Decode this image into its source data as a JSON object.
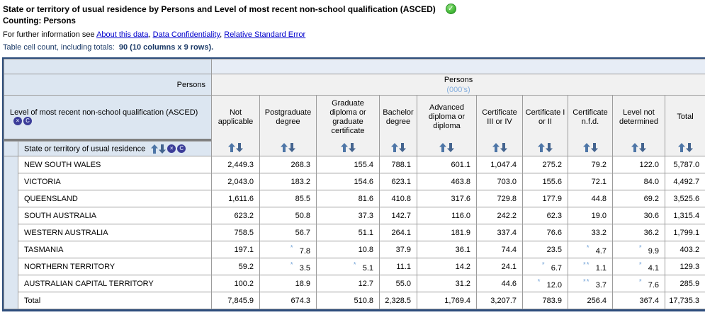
{
  "header": {
    "title": "State or territory of usual residence by Persons and Level of most recent non-school qualification (ASCED)",
    "counting": "Counting: Persons",
    "info_prefix": "For further information see ",
    "link_separator": ", ",
    "links": [
      "About this data",
      "Data Confidentiality",
      "Relative Standard Error"
    ],
    "cell_count_label": "Table cell count, including totals:",
    "cell_count_value": "90 (10 columns x 9 rows)."
  },
  "icons": {
    "status_check": "✓",
    "hide": "×",
    "rotate": "C"
  },
  "colors": {
    "header_blue": "#dce6f1",
    "column_header_gray": "#f1f1f1",
    "outer_border_navy": "#2d4d7c",
    "accent_navy": "#1b3a67",
    "link_blue": "#0000cc",
    "sort_arrow_blue": "#4e76a7",
    "flag_blue": "#76a5d8",
    "status_green": "#3faf3f"
  },
  "table": {
    "wafer_label": "Persons",
    "measure_label": "Persons",
    "measure_unit": "(000's)",
    "column_dimension_label": "Level of most recent non-school qualification (ASCED)",
    "row_dimension_label": "State or territory of usual residence",
    "columns": [
      "Not applicable",
      "Postgraduate degree",
      "Graduate diploma or graduate certificate",
      "Bachelor degree",
      "Advanced diploma or diploma",
      "Certificate III or IV",
      "Certificate I or II",
      "Certificate n.f.d.",
      "Level not determined",
      "Total"
    ],
    "rows": [
      {
        "label": "NEW SOUTH WALES",
        "values": [
          "2,449.3",
          "268.3",
          "155.4",
          "788.1",
          "601.1",
          "1,047.4",
          "275.2",
          "79.2",
          "122.0",
          "5,787.0"
        ],
        "flags": [
          "",
          "",
          "",
          "",
          "",
          "",
          "",
          "",
          "",
          ""
        ]
      },
      {
        "label": "VICTORIA",
        "values": [
          "2,043.0",
          "183.2",
          "154.6",
          "623.1",
          "463.8",
          "703.0",
          "155.6",
          "72.1",
          "84.0",
          "4,492.7"
        ],
        "flags": [
          "",
          "",
          "",
          "",
          "",
          "",
          "",
          "",
          "",
          ""
        ]
      },
      {
        "label": "QUEENSLAND",
        "values": [
          "1,611.6",
          "85.5",
          "81.6",
          "410.8",
          "317.6",
          "729.8",
          "177.9",
          "44.8",
          "69.2",
          "3,525.6"
        ],
        "flags": [
          "",
          "",
          "",
          "",
          "",
          "",
          "",
          "",
          "",
          ""
        ]
      },
      {
        "label": "SOUTH AUSTRALIA",
        "values": [
          "623.2",
          "50.8",
          "37.3",
          "142.7",
          "116.0",
          "242.2",
          "62.3",
          "19.0",
          "30.6",
          "1,315.4"
        ],
        "flags": [
          "",
          "",
          "",
          "",
          "",
          "",
          "",
          "",
          "",
          ""
        ]
      },
      {
        "label": "WESTERN AUSTRALIA",
        "values": [
          "758.5",
          "56.7",
          "51.1",
          "264.1",
          "181.9",
          "337.4",
          "76.6",
          "33.2",
          "36.2",
          "1,799.1"
        ],
        "flags": [
          "",
          "",
          "",
          "",
          "",
          "",
          "",
          "",
          "",
          ""
        ]
      },
      {
        "label": "TASMANIA",
        "values": [
          "197.1",
          "7.8",
          "10.8",
          "37.9",
          "36.1",
          "74.4",
          "23.5",
          "4.7",
          "9.9",
          "403.2"
        ],
        "flags": [
          "",
          "*",
          "",
          "",
          "",
          "",
          "",
          "*",
          "*",
          ""
        ]
      },
      {
        "label": "NORTHERN TERRITORY",
        "values": [
          "59.2",
          "3.5",
          "5.1",
          "11.1",
          "14.2",
          "24.1",
          "6.7",
          "1.1",
          "4.1",
          "129.3"
        ],
        "flags": [
          "",
          "*",
          "*",
          "",
          "",
          "",
          "*",
          "**",
          "*",
          ""
        ]
      },
      {
        "label": "AUSTRALIAN CAPITAL TERRITORY",
        "values": [
          "100.2",
          "18.9",
          "12.7",
          "55.0",
          "31.2",
          "44.6",
          "12.0",
          "3.7",
          "7.6",
          "285.9"
        ],
        "flags": [
          "",
          "",
          "",
          "",
          "",
          "",
          "*",
          "**",
          "*",
          ""
        ]
      },
      {
        "label": "Total",
        "values": [
          "7,845.9",
          "674.3",
          "510.8",
          "2,328.5",
          "1,769.4",
          "3,207.7",
          "783.9",
          "256.4",
          "367.4",
          "17,735.3"
        ],
        "flags": [
          "",
          "",
          "",
          "",
          "",
          "",
          "",
          "",
          "",
          ""
        ]
      }
    ]
  }
}
